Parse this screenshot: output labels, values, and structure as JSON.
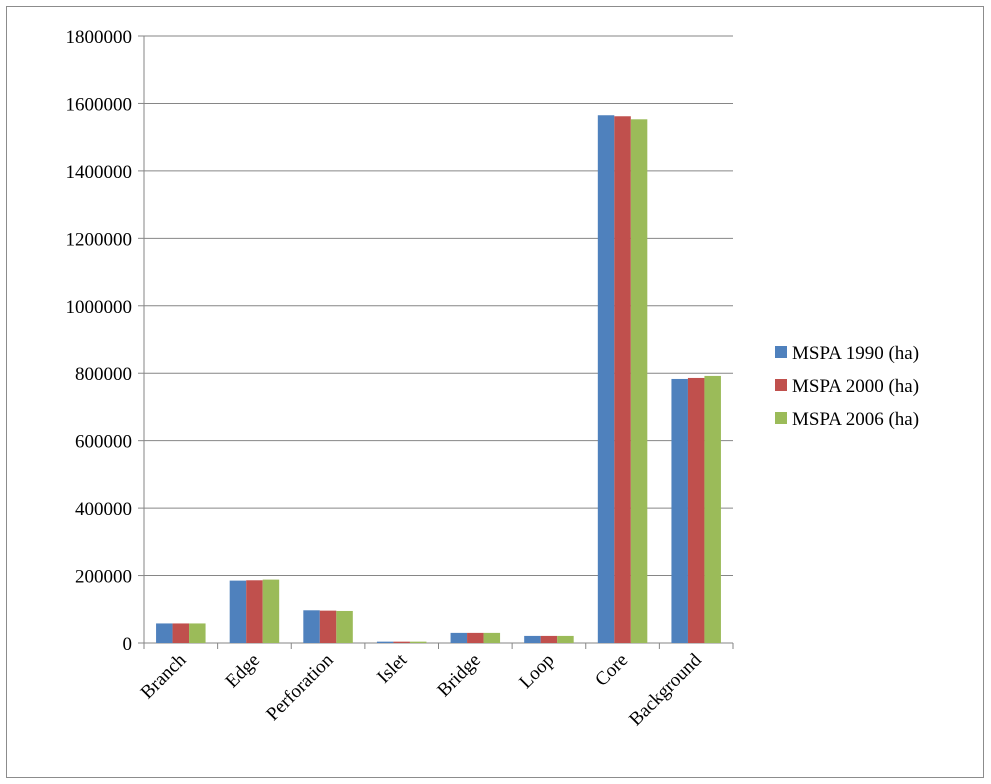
{
  "chart_data": {
    "type": "bar",
    "categories": [
      "Branch",
      "Edge",
      "Perforation",
      "Islet",
      "Bridge",
      "Loop",
      "Core",
      "Background"
    ],
    "series": [
      {
        "name": "MSPA 1990 (ha)",
        "color": "#4F81BD",
        "values": [
          58000,
          185000,
          97000,
          4000,
          30000,
          21000,
          1565000,
          783000
        ]
      },
      {
        "name": "MSPA 2000 (ha)",
        "color": "#C0504D",
        "values": [
          58000,
          186000,
          96000,
          4000,
          30000,
          21000,
          1562000,
          786000
        ]
      },
      {
        "name": "MSPA 2006 (ha)",
        "color": "#9BBB59",
        "values": [
          58000,
          188000,
          95000,
          4000,
          30000,
          21000,
          1553000,
          792000
        ]
      }
    ],
    "ylim": [
      0,
      1800000
    ],
    "yticks": [
      0,
      200000,
      400000,
      600000,
      800000,
      1000000,
      1200000,
      1400000,
      1600000,
      1800000
    ],
    "grid": true,
    "legend": "right"
  }
}
